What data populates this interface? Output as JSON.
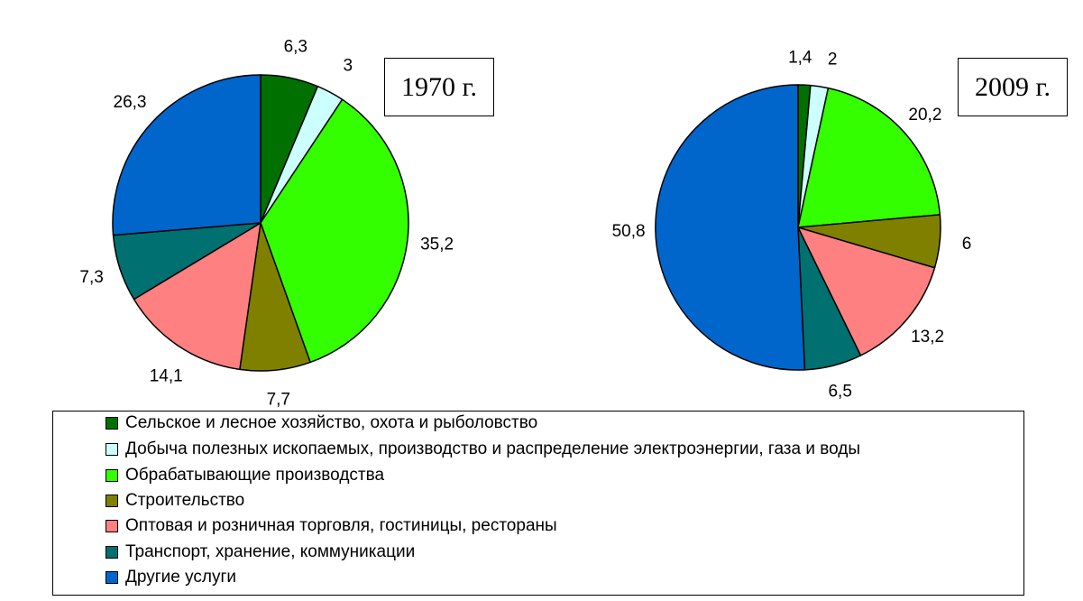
{
  "chart_data": [
    {
      "type": "pie",
      "title": "1970 г.",
      "categories": [
        "Сельское и лесное хозяйство, охота и рыболовство",
        "Добыча полезных ископаемых, производство и распределение электроэнергии, газа и воды",
        "Обрабатывающие производства",
        "Строительство",
        "Оптовая и розничная торговля, гостиницы, рестораны",
        "Транспорт, хранение, коммуникации",
        "Другие услуги"
      ],
      "values": [
        6.3,
        3,
        35.2,
        7.7,
        14.1,
        7.3,
        26.3
      ],
      "value_labels": [
        "6,3",
        "3",
        "35,2",
        "7,7",
        "14,1",
        "7,3",
        "26,3"
      ]
    },
    {
      "type": "pie",
      "title": "2009 г.",
      "categories": [
        "Сельское и лесное хозяйство, охота и рыболовство",
        "Добыча полезных ископаемых, производство и распределение электроэнергии, газа и воды",
        "Обрабатывающие производства",
        "Строительство",
        "Оптовая и розничная торговля, гостиницы, рестораны",
        "Транспорт, хранение, коммуникации",
        "Другие услуги"
      ],
      "values": [
        1.4,
        2,
        20.2,
        6,
        13.2,
        6.5,
        50.8
      ],
      "value_labels": [
        "1,4",
        "2",
        "20,2",
        "6",
        "13,2",
        "6,5",
        "50,8"
      ]
    }
  ],
  "legend": {
    "items": [
      {
        "label": "Сельское и лесное хозяйство, охота и рыболовство",
        "color": "#007000"
      },
      {
        "label": "Добыча полезных ископаемых, производство и распределение электроэнергии, газа и воды",
        "color": "#ccffff"
      },
      {
        "label": "Обрабатывающие производства",
        "color": "#33ff00"
      },
      {
        "label": "Строительство",
        "color": "#808000"
      },
      {
        "label": "Оптовая и розничная торговля, гостиницы, рестораны",
        "color": "#ff8080"
      },
      {
        "label": "Транспорт, хранение, коммуникации",
        "color": "#007070"
      },
      {
        "label": "Другие услуги",
        "color": "#0066cc"
      }
    ],
    "placement": "bottom"
  }
}
